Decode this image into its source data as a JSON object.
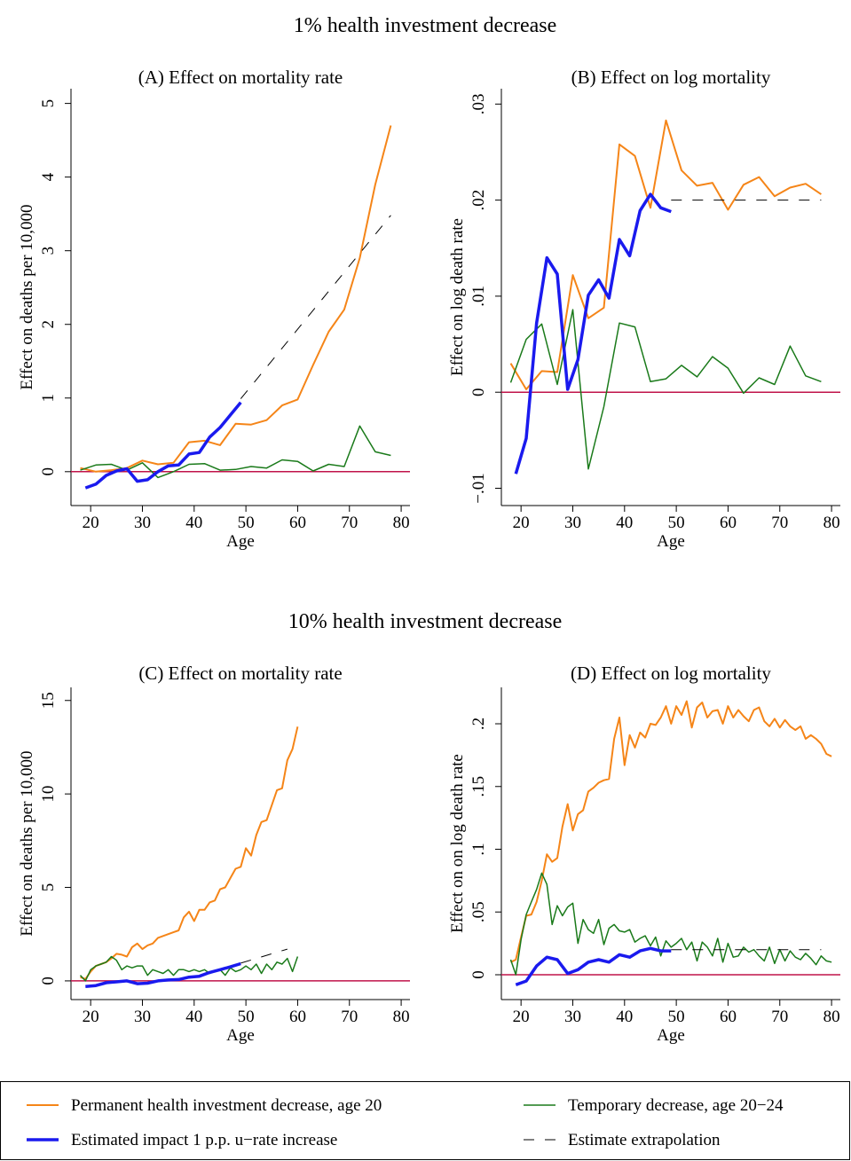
{
  "sections": [
    "1% health investment decrease",
    "10% health investment decrease"
  ],
  "chart_data": [
    {
      "type": "line",
      "title": "(A) Effect on mortality rate",
      "xlabel": "Age",
      "ylabel": "Effect on deaths per 10,000",
      "xlim": [
        16.2,
        81.7
      ],
      "ylim": [
        -0.46,
        5.2
      ],
      "xticks": [
        20,
        30,
        40,
        50,
        60,
        70,
        80
      ],
      "yticks": [
        0,
        1,
        2,
        3,
        4,
        5
      ],
      "refline": {
        "value": 0,
        "color": "#c0134a"
      },
      "series": [
        {
          "name": "Permanent health investment decrease, age 20",
          "color": "#f58518",
          "width": 2,
          "x": [
            18,
            21,
            24,
            27,
            30,
            33,
            36,
            39,
            42,
            45,
            48,
            51,
            54,
            57,
            60,
            63,
            66,
            69,
            72,
            75,
            78
          ],
          "values": [
            0.05,
            0.0,
            0.02,
            0.05,
            0.15,
            0.1,
            0.12,
            0.4,
            0.42,
            0.36,
            0.65,
            0.64,
            0.7,
            0.9,
            0.98,
            1.45,
            1.9,
            2.2,
            2.9,
            3.9,
            4.7
          ]
        },
        {
          "name": "Temporary decrease, age 20−24",
          "color": "#1a7a1a",
          "width": 1.5,
          "x": [
            18,
            21,
            24,
            27,
            30,
            33,
            36,
            39,
            42,
            45,
            48,
            51,
            54,
            57,
            60,
            63,
            66,
            69,
            72,
            75,
            78
          ],
          "values": [
            0.02,
            0.09,
            0.1,
            0.02,
            0.12,
            -0.08,
            0.0,
            0.1,
            0.11,
            0.02,
            0.03,
            0.07,
            0.05,
            0.16,
            0.14,
            0.01,
            0.1,
            0.07,
            0.62,
            0.27,
            0.22
          ]
        },
        {
          "name": "Estimated impact 1 p.p. u−rate increase",
          "color": "#1a1aee",
          "width": 3.5,
          "x": [
            19,
            21,
            23,
            25,
            27,
            29,
            31,
            33,
            35,
            37,
            39,
            41,
            43,
            45,
            47,
            49
          ],
          "values": [
            -0.22,
            -0.17,
            -0.05,
            0.01,
            0.04,
            -0.13,
            -0.11,
            0.0,
            0.08,
            0.09,
            0.24,
            0.26,
            0.47,
            0.6,
            0.77,
            0.94
          ]
        },
        {
          "name": "Estimate extrapolation",
          "color": "#000000",
          "width": 1,
          "dash": true,
          "x": [
            49,
            78
          ],
          "values": [
            0.99,
            3.48
          ]
        }
      ]
    },
    {
      "type": "line",
      "title": "(B) Effect on log mortality",
      "xlabel": "Age",
      "ylabel": "Effect on log death rate",
      "xlim": [
        16.2,
        81.7
      ],
      "ylim": [
        -0.0118,
        0.0316
      ],
      "xticks": [
        20,
        30,
        40,
        50,
        60,
        70,
        80
      ],
      "yticks": [
        {
          "value": -0.01,
          "label": "−.01"
        },
        0,
        {
          "value": 0.01,
          "label": ".01"
        },
        {
          "value": 0.02,
          "label": ".02"
        },
        {
          "value": 0.03,
          "label": ".03"
        }
      ],
      "refline": {
        "value": 0,
        "color": "#c0134a"
      },
      "series": [
        {
          "color": "#f58518",
          "width": 2,
          "x": [
            18,
            21,
            24,
            27,
            30,
            33,
            36,
            39,
            42,
            45,
            48,
            51,
            54,
            57,
            60,
            63,
            66,
            69,
            72,
            75,
            78
          ],
          "values": [
            0.003,
            0.0003,
            0.0022,
            0.0021,
            0.0122,
            0.0077,
            0.0088,
            0.0258,
            0.0246,
            0.0192,
            0.0283,
            0.0231,
            0.0215,
            0.0218,
            0.019,
            0.0216,
            0.0224,
            0.0204,
            0.0213,
            0.0217,
            0.0206
          ]
        },
        {
          "color": "#1a7a1a",
          "width": 1.5,
          "x": [
            18,
            21,
            24,
            27,
            30,
            33,
            36,
            39,
            42,
            45,
            48,
            51,
            54,
            57,
            60,
            63,
            66,
            69,
            72,
            75,
            78
          ],
          "values": [
            0.001,
            0.0055,
            0.0071,
            0.0008,
            0.0086,
            -0.008,
            -0.0015,
            0.0072,
            0.0068,
            0.0011,
            0.0014,
            0.0028,
            0.0016,
            0.0037,
            0.0025,
            -0.0001,
            0.0015,
            0.0008,
            0.0048,
            0.0017,
            0.0011
          ]
        },
        {
          "color": "#1a1aee",
          "width": 3.5,
          "x": [
            19,
            21,
            23,
            25,
            27,
            29,
            31,
            33,
            35,
            37,
            39,
            41,
            43,
            45,
            47,
            49
          ],
          "values": [
            -0.0085,
            -0.0048,
            0.0072,
            0.014,
            0.0123,
            0.0003,
            0.0034,
            0.0101,
            0.0117,
            0.0098,
            0.0159,
            0.0142,
            0.0189,
            0.0206,
            0.0192,
            0.0188
          ]
        },
        {
          "color": "#000000",
          "width": 1,
          "dash": true,
          "x": [
            49,
            78
          ],
          "values": [
            0.02,
            0.02
          ]
        }
      ]
    },
    {
      "type": "line",
      "title": "(C) Effect on mortality rate",
      "xlabel": "Age",
      "ylabel": "Effect on deaths per 10,000",
      "xlim": [
        16.2,
        81.7
      ],
      "ylim": [
        -1.0,
        15.7
      ],
      "xticks": [
        20,
        30,
        40,
        50,
        60,
        70,
        80
      ],
      "yticks": [
        0,
        5,
        10,
        15
      ],
      "refline": {
        "value": 0,
        "color": "#c0134a"
      },
      "series": [
        {
          "color": "#f58518",
          "width": 2,
          "x": [
            18,
            19,
            20,
            21,
            22,
            23,
            24,
            25,
            26,
            27,
            28,
            29,
            30,
            31,
            32,
            33,
            34,
            35,
            36,
            37,
            38,
            39,
            40,
            41,
            42,
            43,
            44,
            45,
            46,
            47,
            48,
            49,
            50,
            51,
            52,
            53,
            54,
            55,
            56,
            57,
            58,
            59,
            60
          ],
          "values": [
            0.2,
            0.1,
            0.5,
            0.8,
            0.9,
            1.0,
            1.2,
            1.45,
            1.4,
            1.3,
            1.8,
            2.0,
            1.7,
            1.9,
            2.0,
            2.3,
            2.4,
            2.5,
            2.6,
            2.7,
            3.4,
            3.7,
            3.2,
            3.8,
            3.8,
            4.2,
            4.3,
            4.9,
            5.0,
            5.5,
            6.0,
            6.1,
            7.1,
            6.7,
            7.8,
            8.5,
            8.6,
            9.4,
            10.2,
            10.3,
            11.8,
            12.4,
            13.6
          ]
        },
        {
          "color": "#1a7a1a",
          "width": 1.5,
          "x": [
            18,
            19,
            20,
            21,
            22,
            23,
            24,
            25,
            26,
            27,
            28,
            29,
            30,
            31,
            32,
            33,
            34,
            35,
            36,
            37,
            38,
            39,
            40,
            41,
            42,
            43,
            44,
            45,
            46,
            47,
            48,
            49,
            50,
            51,
            52,
            53,
            54,
            55,
            56,
            57,
            58,
            59,
            60
          ],
          "values": [
            0.3,
            0.0,
            0.6,
            0.8,
            0.9,
            1.0,
            1.3,
            1.1,
            0.6,
            0.8,
            0.7,
            0.8,
            0.8,
            0.3,
            0.6,
            0.5,
            0.4,
            0.6,
            0.3,
            0.6,
            0.6,
            0.5,
            0.6,
            0.5,
            0.6,
            0.4,
            0.5,
            0.6,
            0.3,
            0.7,
            0.5,
            0.6,
            0.8,
            0.6,
            0.9,
            0.4,
            0.9,
            0.6,
            1.0,
            0.9,
            1.2,
            0.5,
            1.3
          ]
        },
        {
          "color": "#1a1aee",
          "width": 3.5,
          "x": [
            19,
            21,
            23,
            25,
            27,
            29,
            31,
            33,
            35,
            37,
            39,
            41,
            43,
            45,
            47,
            49
          ],
          "values": [
            -0.3,
            -0.25,
            -0.1,
            -0.05,
            0.0,
            -0.15,
            -0.12,
            0.0,
            0.05,
            0.07,
            0.2,
            0.25,
            0.45,
            0.6,
            0.75,
            0.92
          ]
        },
        {
          "color": "#000000",
          "width": 1,
          "dash": true,
          "x": [
            49,
            58
          ],
          "values": [
            0.95,
            1.7
          ]
        }
      ]
    },
    {
      "type": "line",
      "title": "(D) Effect on log mortality",
      "xlabel": "Age",
      "ylabel": "Effect on on log death rate",
      "xlim": [
        16.2,
        81.7
      ],
      "ylim": [
        -0.0198,
        0.229
      ],
      "xticks": [
        20,
        30,
        40,
        50,
        60,
        70,
        80
      ],
      "yticks": [
        0,
        {
          "value": 0.05,
          "label": ".05"
        },
        {
          "value": 0.1,
          "label": ".1"
        },
        {
          "value": 0.15,
          "label": ".15"
        },
        {
          "value": 0.2,
          "label": ".2"
        }
      ],
      "refline": {
        "value": 0,
        "color": "#c0134a"
      },
      "series": [
        {
          "color": "#f58518",
          "width": 2,
          "x": [
            18,
            19,
            20,
            21,
            22,
            23,
            24,
            25,
            26,
            27,
            28,
            29,
            30,
            31,
            32,
            33,
            34,
            35,
            36,
            37,
            38,
            39,
            40,
            41,
            42,
            43,
            44,
            45,
            46,
            47,
            48,
            49,
            50,
            51,
            52,
            53,
            54,
            55,
            56,
            57,
            58,
            59,
            60,
            61,
            62,
            63,
            64,
            65,
            66,
            67,
            68,
            69,
            70,
            71,
            72,
            73,
            74,
            75,
            76,
            77,
            78,
            79,
            80
          ],
          "values": [
            0.01,
            0.012,
            0.03,
            0.047,
            0.048,
            0.058,
            0.075,
            0.096,
            0.09,
            0.093,
            0.118,
            0.136,
            0.115,
            0.128,
            0.131,
            0.146,
            0.149,
            0.153,
            0.155,
            0.156,
            0.188,
            0.205,
            0.167,
            0.191,
            0.181,
            0.193,
            0.189,
            0.2,
            0.199,
            0.205,
            0.214,
            0.2,
            0.214,
            0.207,
            0.218,
            0.197,
            0.213,
            0.217,
            0.205,
            0.21,
            0.211,
            0.2,
            0.214,
            0.205,
            0.211,
            0.206,
            0.202,
            0.211,
            0.213,
            0.202,
            0.198,
            0.204,
            0.197,
            0.203,
            0.198,
            0.195,
            0.198,
            0.188,
            0.191,
            0.188,
            0.184,
            0.176,
            0.174
          ]
        },
        {
          "color": "#1a7a1a",
          "width": 1.5,
          "x": [
            18,
            19,
            20,
            21,
            22,
            23,
            24,
            25,
            26,
            27,
            28,
            29,
            30,
            31,
            32,
            33,
            34,
            35,
            36,
            37,
            38,
            39,
            40,
            41,
            42,
            43,
            44,
            45,
            46,
            47,
            48,
            49,
            50,
            51,
            52,
            53,
            54,
            55,
            56,
            57,
            58,
            59,
            60,
            61,
            62,
            63,
            64,
            65,
            66,
            67,
            68,
            69,
            70,
            71,
            72,
            73,
            74,
            75,
            76,
            77,
            78,
            79,
            80
          ],
          "values": [
            0.012,
            0.0,
            0.028,
            0.048,
            0.058,
            0.068,
            0.081,
            0.072,
            0.04,
            0.055,
            0.047,
            0.054,
            0.057,
            0.025,
            0.044,
            0.036,
            0.033,
            0.044,
            0.024,
            0.037,
            0.04,
            0.035,
            0.034,
            0.036,
            0.026,
            0.029,
            0.031,
            0.023,
            0.03,
            0.015,
            0.027,
            0.022,
            0.025,
            0.029,
            0.02,
            0.026,
            0.011,
            0.026,
            0.022,
            0.015,
            0.029,
            0.01,
            0.025,
            0.014,
            0.015,
            0.022,
            0.018,
            0.02,
            0.015,
            0.011,
            0.022,
            0.009,
            0.02,
            0.011,
            0.019,
            0.014,
            0.012,
            0.017,
            0.013,
            0.008,
            0.015,
            0.011,
            0.01
          ]
        },
        {
          "color": "#1a1aee",
          "width": 3.5,
          "x": [
            19,
            21,
            23,
            25,
            27,
            29,
            31,
            33,
            35,
            37,
            39,
            41,
            43,
            45,
            47,
            49
          ],
          "values": [
            -0.008,
            -0.005,
            0.007,
            0.014,
            0.012,
            0.001,
            0.004,
            0.01,
            0.012,
            0.01,
            0.016,
            0.014,
            0.019,
            0.021,
            0.019,
            0.019
          ]
        },
        {
          "color": "#000000",
          "width": 1,
          "dash": true,
          "x": [
            49,
            78
          ],
          "values": [
            0.02,
            0.02
          ]
        }
      ]
    }
  ]
}
